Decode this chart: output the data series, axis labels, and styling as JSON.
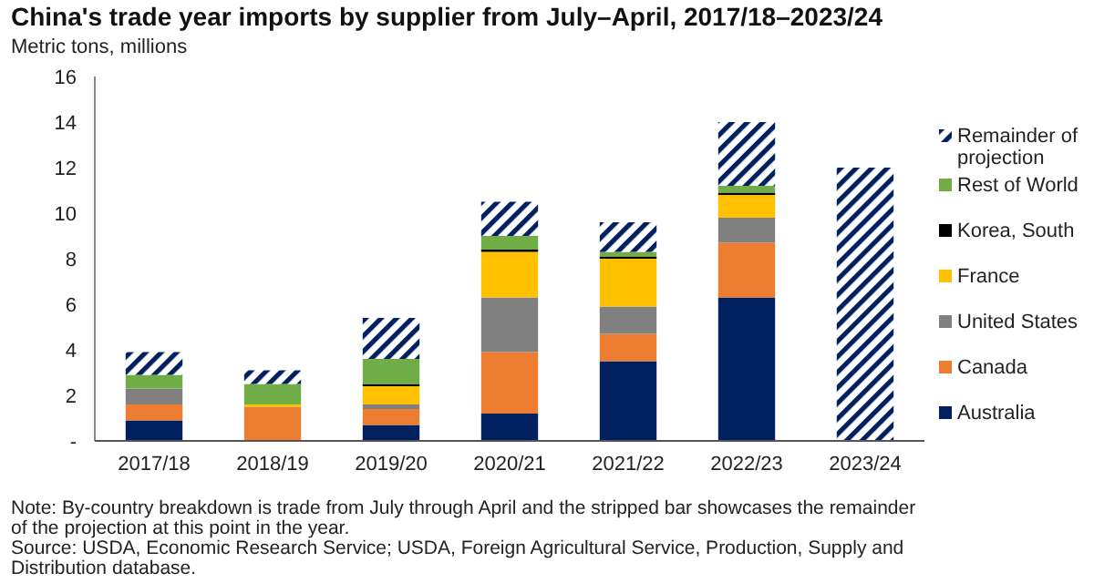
{
  "chart_data": {
    "type": "bar",
    "stacked": true,
    "title": "China's trade year imports by supplier from July–April, 2017/18–2023/24",
    "ylabel": "Metric tons, millions",
    "categories": [
      "2017/18",
      "2018/19",
      "2019/20",
      "2020/21",
      "2021/22",
      "2022/23",
      "2023/24"
    ],
    "series": [
      {
        "name": "Australia",
        "color": "#002060",
        "values": [
          0.9,
          0,
          0.7,
          1.2,
          3.5,
          6.3,
          0
        ]
      },
      {
        "name": "Canada",
        "color": "#ed7d31",
        "values": [
          0.7,
          1.5,
          0.7,
          2.7,
          1.2,
          2.4,
          0
        ]
      },
      {
        "name": "United States",
        "color": "#808080",
        "values": [
          0.7,
          0,
          0.2,
          2.4,
          1.2,
          1.1,
          0
        ]
      },
      {
        "name": "France",
        "color": "#ffc000",
        "values": [
          0,
          0.1,
          0.8,
          2.0,
          2.1,
          1.0,
          0
        ]
      },
      {
        "name": "Korea, South",
        "color": "#000000",
        "values": [
          0,
          0,
          0.1,
          0.1,
          0.1,
          0.1,
          0
        ]
      },
      {
        "name": "Rest of World",
        "color": "#70ad47",
        "values": [
          0.6,
          0.9,
          1.1,
          0.6,
          0.2,
          0.3,
          0
        ]
      },
      {
        "name": "Remainder of projection",
        "color": "#002060",
        "values": [
          1.0,
          0.6,
          1.8,
          1.5,
          1.3,
          2.8,
          12.0
        ]
      }
    ],
    "ylim": [
      0,
      16
    ],
    "yticks": [
      {
        "value": 0,
        "label": "-"
      },
      2,
      4,
      6,
      8,
      10,
      12,
      14,
      16
    ],
    "grid": false,
    "legend": "right",
    "annotations": [
      "Note: By-country breakdown is trade from July through April and the stripped bar showcases the remainder of the projection at this point in the year.",
      "Source: USDA, Economic Research Service; USDA, Foreign Agricultural Service, Production, Supply and Distribution database."
    ]
  }
}
